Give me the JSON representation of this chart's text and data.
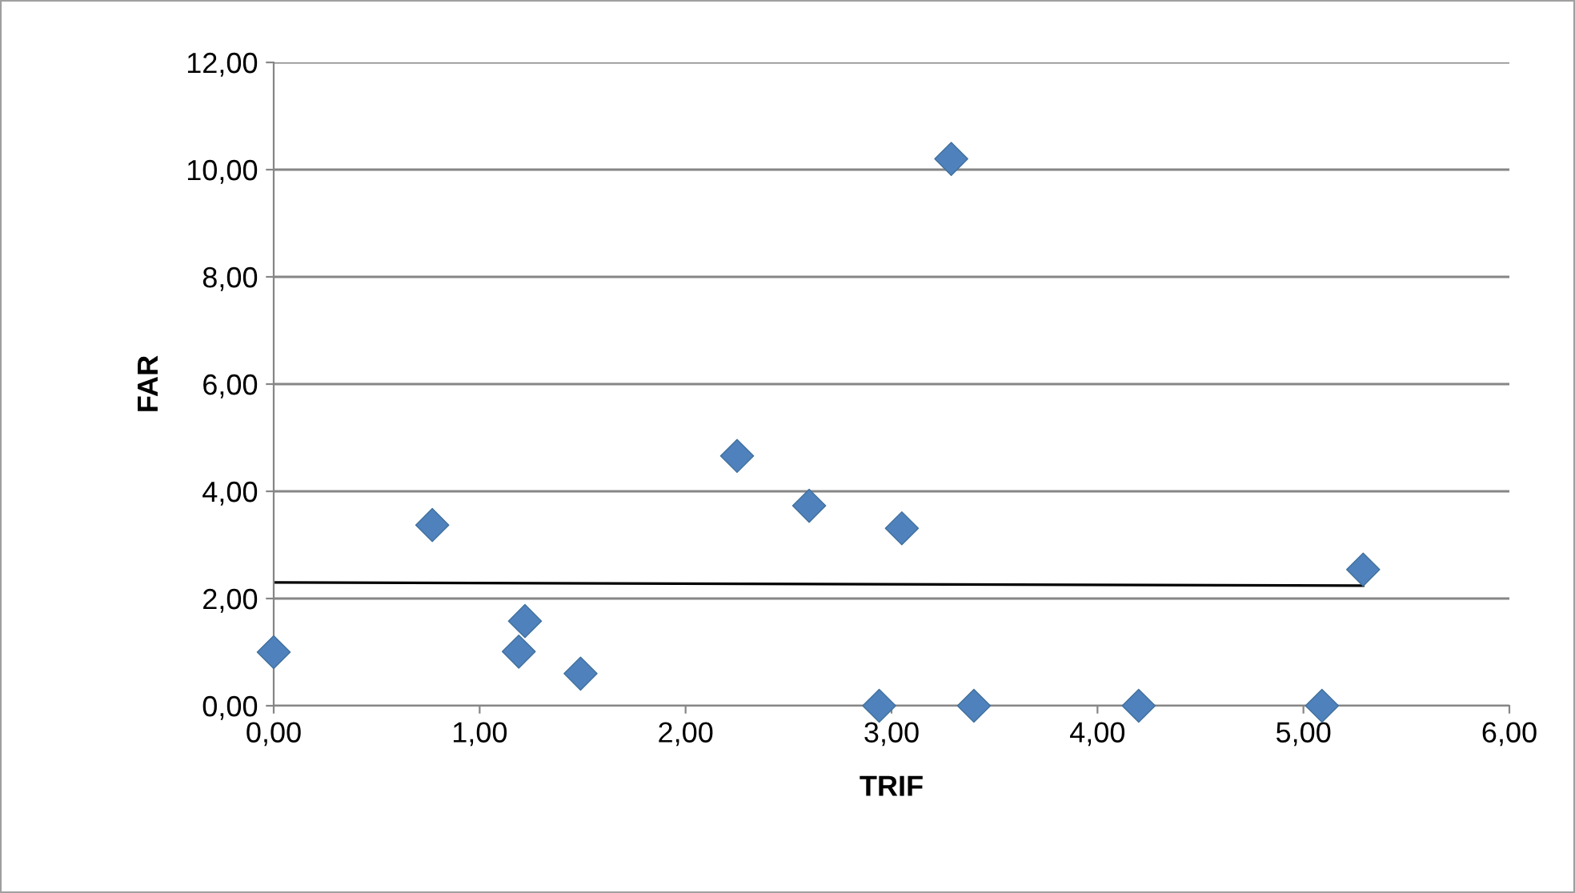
{
  "chart_data": {
    "type": "scatter",
    "xlabel": "TRIF",
    "ylabel": "FAR",
    "xlim": [
      0,
      6
    ],
    "ylim": [
      0,
      12
    ],
    "xticks": [
      {
        "value": 0,
        "label": "0,00"
      },
      {
        "value": 1,
        "label": "1,00"
      },
      {
        "value": 2,
        "label": "2,00"
      },
      {
        "value": 3,
        "label": "3,00"
      },
      {
        "value": 4,
        "label": "4,00"
      },
      {
        "value": 5,
        "label": "5,00"
      },
      {
        "value": 6,
        "label": "6,00"
      }
    ],
    "yticks": [
      {
        "value": 0,
        "label": "0,00"
      },
      {
        "value": 2,
        "label": "2,00"
      },
      {
        "value": 4,
        "label": "4,00"
      },
      {
        "value": 6,
        "label": "6,00"
      },
      {
        "value": 8,
        "label": "8,00"
      },
      {
        "value": 10,
        "label": "10,00"
      },
      {
        "value": 12,
        "label": "12,00"
      }
    ],
    "grid": "y",
    "marker": "diamond",
    "series": [
      {
        "color": "#4f81bd",
        "x": [
          0,
          0.77,
          1.22,
          1.19,
          1.49,
          2.25,
          2.6,
          3.05,
          3.29,
          2.94,
          3.4,
          4.2,
          5.09,
          5.29
        ],
        "values": [
          1.0,
          3.37,
          1.58,
          1.01,
          0.6,
          4.66,
          3.73,
          3.31,
          10.2,
          0,
          0,
          0,
          0,
          2.54
        ]
      },
      {
        "type": "line",
        "color": "#000000",
        "line_style": "solid",
        "marker": "none",
        "x": [
          0,
          5.29
        ],
        "values": [
          2.3,
          2.24
        ]
      }
    ]
  }
}
